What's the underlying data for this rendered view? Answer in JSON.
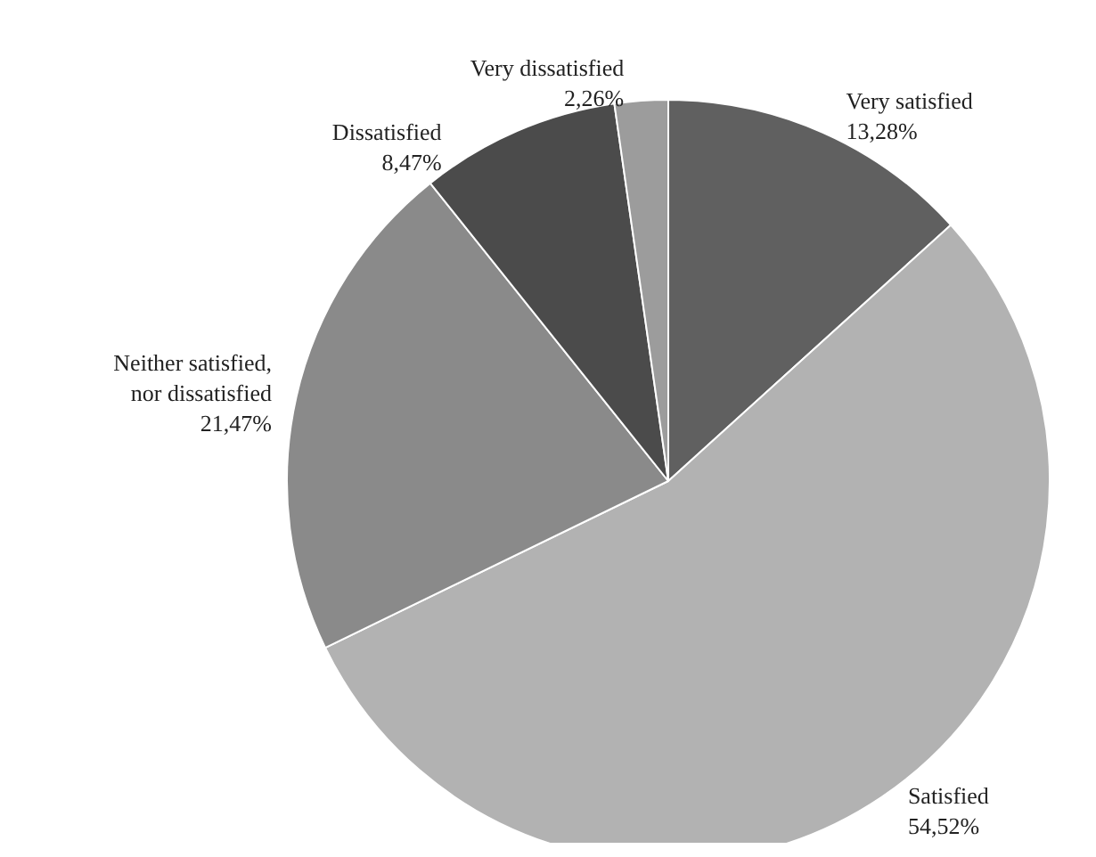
{
  "chart_data": {
    "type": "pie",
    "categories": [
      "Very satisfied",
      "Satisfied",
      "Neither satisfied,\nnor dissatisfied",
      "Dissatisfied",
      "Very dissatisfied"
    ],
    "values": [
      13.28,
      54.52,
      21.47,
      8.47,
      2.26
    ],
    "value_labels": [
      "13,28%",
      "54,52%",
      "21,47%",
      "8,47%",
      "2,26%"
    ],
    "colors": [
      "#606060",
      "#b2b2b2",
      "#8a8a8a",
      "#4b4b4b",
      "#9c9c9c"
    ],
    "legend": false
  }
}
